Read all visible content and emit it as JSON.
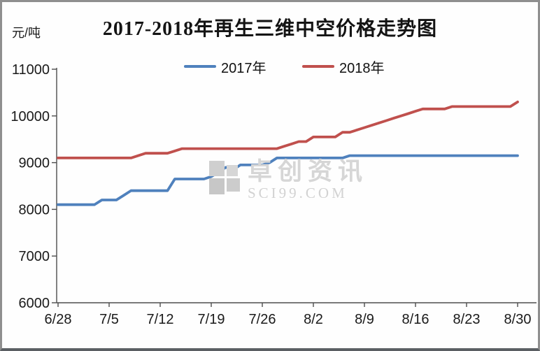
{
  "chart_data": {
    "type": "line",
    "title": "2017-2018年再生三维中空价格走势图",
    "ylabel": "元/吨",
    "xlabel": "",
    "ylim": [
      6000,
      11000
    ],
    "y_ticks": [
      6000,
      7000,
      8000,
      9000,
      10000,
      11000
    ],
    "x_tick_labels": [
      "6/28",
      "7/5",
      "7/12",
      "7/19",
      "7/26",
      "8/2",
      "8/9",
      "8/16",
      "8/23",
      "8/30"
    ],
    "x_tick_indices": [
      0,
      7,
      14,
      21,
      28,
      35,
      42,
      49,
      56,
      63
    ],
    "grid": false,
    "legend_position": "top",
    "dates": [
      "6/28",
      "6/29",
      "6/30",
      "7/1",
      "7/2",
      "7/3",
      "7/4",
      "7/5",
      "7/6",
      "7/7",
      "7/8",
      "7/9",
      "7/10",
      "7/11",
      "7/12",
      "7/13",
      "7/14",
      "7/15",
      "7/16",
      "7/17",
      "7/18",
      "7/19",
      "7/20",
      "7/21",
      "7/22",
      "7/23",
      "7/24",
      "7/25",
      "7/26",
      "7/27",
      "7/28",
      "7/29",
      "7/30",
      "7/31",
      "8/1",
      "8/2",
      "8/3",
      "8/4",
      "8/5",
      "8/6",
      "8/7",
      "8/8",
      "8/9",
      "8/10",
      "8/11",
      "8/12",
      "8/13",
      "8/14",
      "8/15",
      "8/16",
      "8/17",
      "8/18",
      "8/19",
      "8/20",
      "8/21",
      "8/22",
      "8/23",
      "8/24",
      "8/25",
      "8/26",
      "8/27",
      "8/28",
      "8/29",
      "8/30"
    ],
    "series": [
      {
        "name": "2017年",
        "color": "#4f81bd",
        "values": [
          8100,
          8100,
          8100,
          8100,
          8100,
          8100,
          8200,
          8200,
          8200,
          8300,
          8400,
          8400,
          8400,
          8400,
          8400,
          8400,
          8650,
          8650,
          8650,
          8650,
          8650,
          8700,
          8800,
          8900,
          8850,
          8950,
          8950,
          8950,
          8950,
          9000,
          9100,
          9100,
          9100,
          9100,
          9100,
          9100,
          9100,
          9100,
          9100,
          9100,
          9150,
          9150,
          9150,
          9150,
          9150,
          9150,
          9150,
          9150,
          9150,
          9150,
          9150,
          9150,
          9150,
          9150,
          9150,
          9150,
          9150,
          9150,
          9150,
          9150,
          9150,
          9150,
          9150,
          9150
        ]
      },
      {
        "name": "2018年",
        "color": "#c0504d",
        "values": [
          9100,
          9100,
          9100,
          9100,
          9100,
          9100,
          9100,
          9100,
          9100,
          9100,
          9100,
          9150,
          9200,
          9200,
          9200,
          9200,
          9250,
          9300,
          9300,
          9300,
          9300,
          9300,
          9300,
          9300,
          9300,
          9300,
          9300,
          9300,
          9300,
          9300,
          9300,
          9350,
          9400,
          9450,
          9450,
          9550,
          9550,
          9550,
          9550,
          9650,
          9650,
          9700,
          9750,
          9800,
          9850,
          9900,
          9950,
          10000,
          10050,
          10100,
          10150,
          10150,
          10150,
          10150,
          10200,
          10200,
          10200,
          10200,
          10200,
          10200,
          10200,
          10200,
          10200,
          10300
        ]
      }
    ]
  },
  "watermark": {
    "text": "卓创资讯",
    "subtext": "SCI99.COM"
  },
  "colors": {
    "axis": "#4d4d4d",
    "label_text": "#1a1a1a",
    "watermark": "#d4d4d4",
    "frame_border": "#8f8f8f"
  }
}
